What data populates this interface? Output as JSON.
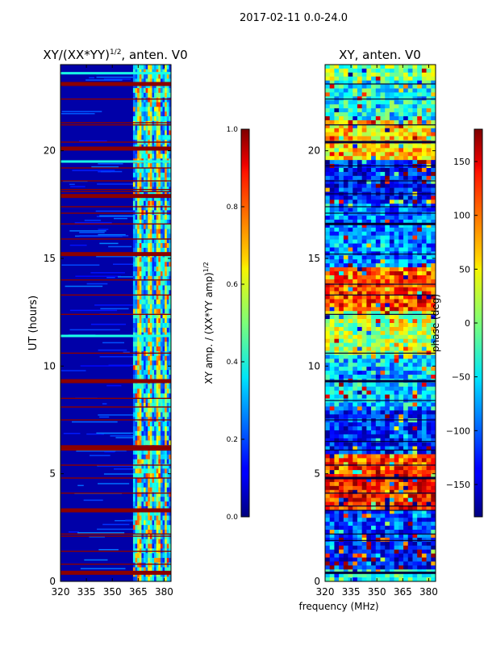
{
  "suptitle": "2017-02-11 0.0-24.0",
  "shared_xlabel": "frequency (MHz)",
  "chart_data": [
    {
      "type": "heatmap",
      "title": "XY/(XX*YY)",
      "title_exponent": "1/2",
      "title_suffix": ", anten. V0",
      "xlabel": "",
      "ylabel": "UT (hours)",
      "xlim": [
        320,
        384
      ],
      "ylim": [
        0,
        24
      ],
      "x_ticks": [
        320,
        335,
        350,
        365,
        380
      ],
      "y_ticks": [
        0,
        5,
        10,
        15,
        20
      ],
      "colorbar": {
        "label": "XY amp. / (XX*YY amp)",
        "label_exponent": "1/2",
        "range": [
          0.0,
          1.0
        ],
        "ticks": [
          "0.0",
          "0.2",
          "0.4",
          "0.6",
          "0.8",
          "1.0"
        ],
        "colormap": "jet"
      },
      "flagged_bands_hours": [
        0.4,
        0.8,
        1.4,
        2.1,
        2.2,
        3.3,
        4.1,
        4.8,
        5.4,
        6.1,
        6.2,
        6.3,
        7.5,
        8.1,
        8.5,
        9.3,
        10.6,
        12.4,
        13.3,
        14.0,
        15.2,
        15.9,
        16.6,
        17.1,
        17.4,
        17.9,
        18.1,
        18.2,
        18.6,
        19.2,
        20.1,
        20.4,
        21.2,
        21.3,
        22.4,
        23.1
      ],
      "bright_bands_hours": [
        11.4,
        19.5,
        23.6
      ],
      "active_channels_mhz": [
        362,
        384
      ]
    },
    {
      "type": "heatmap",
      "title": "XY, anten. V0",
      "xlabel": "",
      "ylabel": "",
      "xlim": [
        320,
        384
      ],
      "ylim": [
        0,
        24
      ],
      "x_ticks": [
        320,
        335,
        350,
        365,
        380
      ],
      "y_ticks": [
        0,
        5,
        10,
        15,
        20
      ],
      "colorbar": {
        "label": "phase (deg)",
        "range": [
          -180,
          180
        ],
        "ticks": [
          "−150",
          "−100",
          "−50",
          "0",
          "50",
          "100",
          "150"
        ],
        "tick_values": [
          -150,
          -100,
          -50,
          0,
          50,
          100,
          150
        ],
        "colormap": "jet"
      },
      "phase_segments_hours": [
        {
          "from": 0,
          "to": 0.5,
          "phase": -30
        },
        {
          "from": 0.5,
          "to": 2.1,
          "phase": -140
        },
        {
          "from": 2.1,
          "to": 3.3,
          "phase": -110
        },
        {
          "from": 3.3,
          "to": 5.2,
          "phase": 130
        },
        {
          "from": 5.2,
          "to": 6.0,
          "phase": 110
        },
        {
          "from": 6.0,
          "to": 8.0,
          "phase": -120
        },
        {
          "from": 8.0,
          "to": 10.5,
          "phase": -60
        },
        {
          "from": 10.5,
          "to": 12.5,
          "phase": 20
        },
        {
          "from": 12.5,
          "to": 14.5,
          "phase": 110
        },
        {
          "from": 14.5,
          "to": 17.5,
          "phase": -90
        },
        {
          "from": 17.5,
          "to": 19.5,
          "phase": -130
        },
        {
          "from": 19.5,
          "to": 21.5,
          "phase": 60
        },
        {
          "from": 21.5,
          "to": 23.2,
          "phase": -40
        },
        {
          "from": 23.2,
          "to": 24.0,
          "phase": 0
        }
      ],
      "flagged_bands_hours": [
        0.4,
        1.9,
        2.2,
        3.3,
        3.5,
        4.1,
        4.8,
        5.4,
        6.1,
        6.5,
        7.5,
        8.4,
        9.3,
        10.6,
        12.4,
        13.3,
        13.8,
        15.2,
        16.6,
        17.1,
        17.4,
        18.0,
        18.6,
        19.3,
        20.4,
        21.2,
        22.4,
        23.1
      ]
    }
  ]
}
